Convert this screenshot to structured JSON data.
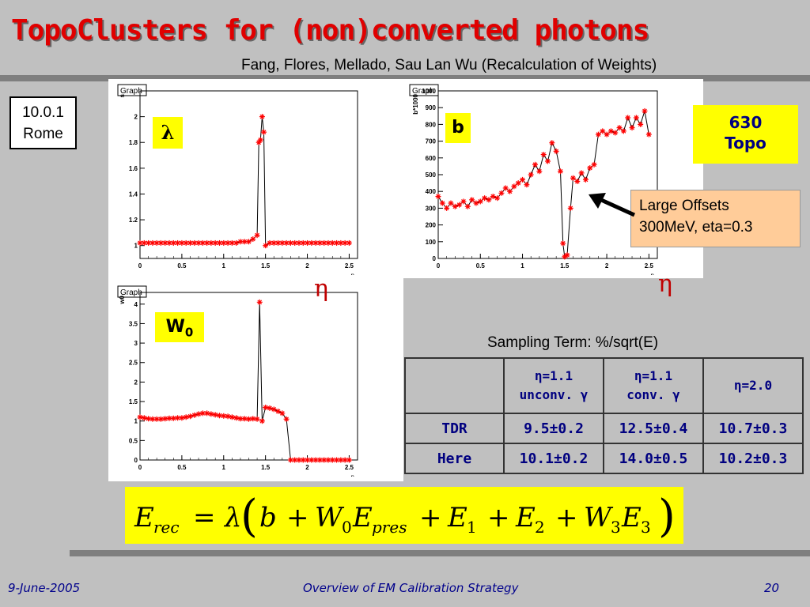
{
  "title": "TopoClusters for (non)converted photons",
  "authors": "Fang, Flores, Mellado, Sau Lan Wu (Recalculation of Weights)",
  "version": {
    "line1": "10.0.1",
    "line2": "Rome"
  },
  "badge": {
    "line1": "630",
    "line2": "Topo"
  },
  "offset_note": {
    "line1": "Large Offsets",
    "line2": "300MeV, eta=0.3"
  },
  "sampling": {
    "title": "Sampling Term: %/sqrt(E)",
    "headers": [
      {
        "l1": "η=1.1",
        "l2": "unconv. γ"
      },
      {
        "l1": "η=1.1",
        "l2": "conv. γ"
      },
      {
        "l1": "η=2.0",
        "l2": ""
      }
    ],
    "rows": [
      {
        "label": "TDR",
        "values": [
          "9.5±0.2",
          "12.5±0.4",
          "10.7±0.3"
        ]
      },
      {
        "label": "Here",
        "values": [
          "10.1±0.2",
          "14.0±0.5",
          "10.2±0.3"
        ]
      }
    ]
  },
  "formula": "E_rec = λ( b + W0 E_pres + E1 + E2 + W3 E3 )",
  "footer": {
    "date": "9-June-2005",
    "center": "Overview of EM Calibration Strategy",
    "page": "20"
  },
  "colors": {
    "title": "#e00000",
    "marker": "#ff0000",
    "footer": "#00008b",
    "param_bg": "#ffff00"
  },
  "chart_data": [
    {
      "type": "line",
      "graph_label": "Graph",
      "param_label": "λ",
      "eta_label": "η",
      "xlabel": "η",
      "ylabel": "s",
      "xlim": [
        0,
        2.6
      ],
      "ylim": [
        0.9,
        2.2
      ],
      "xticks": [
        "0",
        "0.5",
        "1",
        "1.5",
        "2",
        "2.5"
      ],
      "yticks": [
        "1",
        "1.2",
        "1.4",
        "1.6",
        "1.8",
        "2"
      ],
      "points": [
        [
          0.0,
          1.02
        ],
        [
          0.05,
          1.02
        ],
        [
          0.1,
          1.02
        ],
        [
          0.15,
          1.02
        ],
        [
          0.2,
          1.02
        ],
        [
          0.25,
          1.02
        ],
        [
          0.3,
          1.02
        ],
        [
          0.35,
          1.02
        ],
        [
          0.4,
          1.02
        ],
        [
          0.45,
          1.02
        ],
        [
          0.5,
          1.02
        ],
        [
          0.55,
          1.02
        ],
        [
          0.6,
          1.02
        ],
        [
          0.65,
          1.02
        ],
        [
          0.7,
          1.02
        ],
        [
          0.75,
          1.02
        ],
        [
          0.8,
          1.02
        ],
        [
          0.85,
          1.02
        ],
        [
          0.9,
          1.02
        ],
        [
          0.95,
          1.02
        ],
        [
          1.0,
          1.02
        ],
        [
          1.05,
          1.02
        ],
        [
          1.1,
          1.02
        ],
        [
          1.15,
          1.02
        ],
        [
          1.2,
          1.03
        ],
        [
          1.25,
          1.03
        ],
        [
          1.3,
          1.03
        ],
        [
          1.35,
          1.05
        ],
        [
          1.4,
          1.08
        ],
        [
          1.42,
          1.8
        ],
        [
          1.44,
          1.82
        ],
        [
          1.46,
          2.0
        ],
        [
          1.48,
          1.88
        ],
        [
          1.5,
          1.0
        ],
        [
          1.55,
          1.02
        ],
        [
          1.6,
          1.02
        ],
        [
          1.65,
          1.02
        ],
        [
          1.7,
          1.02
        ],
        [
          1.75,
          1.02
        ],
        [
          1.8,
          1.02
        ],
        [
          1.85,
          1.02
        ],
        [
          1.9,
          1.02
        ],
        [
          1.95,
          1.02
        ],
        [
          2.0,
          1.02
        ],
        [
          2.05,
          1.02
        ],
        [
          2.1,
          1.02
        ],
        [
          2.15,
          1.02
        ],
        [
          2.2,
          1.02
        ],
        [
          2.25,
          1.02
        ],
        [
          2.3,
          1.02
        ],
        [
          2.35,
          1.02
        ],
        [
          2.4,
          1.02
        ],
        [
          2.45,
          1.02
        ],
        [
          2.5,
          1.02
        ]
      ]
    },
    {
      "type": "line",
      "graph_label": "Graph",
      "param_label": "b",
      "eta_label": "η",
      "xlabel": "η",
      "ylabel": "b*1000",
      "xlim": [
        0,
        2.6
      ],
      "ylim": [
        0,
        1000
      ],
      "xticks": [
        "0",
        "0.5",
        "1",
        "1.5",
        "2",
        "2.5"
      ],
      "yticks": [
        "0",
        "100",
        "200",
        "300",
        "400",
        "500",
        "600",
        "700",
        "800",
        "900",
        "1000"
      ],
      "points": [
        [
          0.0,
          370
        ],
        [
          0.05,
          330
        ],
        [
          0.1,
          300
        ],
        [
          0.15,
          330
        ],
        [
          0.2,
          310
        ],
        [
          0.25,
          320
        ],
        [
          0.3,
          340
        ],
        [
          0.35,
          310
        ],
        [
          0.4,
          350
        ],
        [
          0.45,
          330
        ],
        [
          0.5,
          340
        ],
        [
          0.55,
          360
        ],
        [
          0.6,
          350
        ],
        [
          0.65,
          370
        ],
        [
          0.7,
          360
        ],
        [
          0.75,
          390
        ],
        [
          0.8,
          420
        ],
        [
          0.85,
          400
        ],
        [
          0.9,
          430
        ],
        [
          0.95,
          450
        ],
        [
          1.0,
          470
        ],
        [
          1.05,
          440
        ],
        [
          1.1,
          500
        ],
        [
          1.15,
          560
        ],
        [
          1.2,
          520
        ],
        [
          1.25,
          620
        ],
        [
          1.3,
          580
        ],
        [
          1.35,
          690
        ],
        [
          1.4,
          640
        ],
        [
          1.45,
          520
        ],
        [
          1.48,
          90
        ],
        [
          1.5,
          10
        ],
        [
          1.53,
          20
        ],
        [
          1.57,
          300
        ],
        [
          1.6,
          480
        ],
        [
          1.65,
          460
        ],
        [
          1.7,
          510
        ],
        [
          1.75,
          470
        ],
        [
          1.8,
          540
        ],
        [
          1.85,
          560
        ],
        [
          1.9,
          740
        ],
        [
          1.95,
          760
        ],
        [
          2.0,
          740
        ],
        [
          2.05,
          760
        ],
        [
          2.1,
          750
        ],
        [
          2.15,
          780
        ],
        [
          2.2,
          760
        ],
        [
          2.25,
          840
        ],
        [
          2.3,
          780
        ],
        [
          2.35,
          840
        ],
        [
          2.4,
          800
        ],
        [
          2.45,
          880
        ],
        [
          2.5,
          740
        ]
      ]
    },
    {
      "type": "line",
      "graph_label": "Graph",
      "param_label": "W0",
      "xlabel": "η",
      "ylabel": "w0",
      "xlim": [
        0,
        2.6
      ],
      "ylim": [
        0,
        4.3
      ],
      "xticks": [
        "0",
        "0.5",
        "1",
        "1.5",
        "2",
        "2.5"
      ],
      "yticks": [
        "0",
        "0.5",
        "1",
        "1.5",
        "2",
        "2.5",
        "3",
        "3.5",
        "4"
      ],
      "points": [
        [
          0.0,
          1.1
        ],
        [
          0.05,
          1.08
        ],
        [
          0.1,
          1.06
        ],
        [
          0.15,
          1.05
        ],
        [
          0.2,
          1.05
        ],
        [
          0.25,
          1.05
        ],
        [
          0.3,
          1.06
        ],
        [
          0.35,
          1.07
        ],
        [
          0.4,
          1.07
        ],
        [
          0.45,
          1.08
        ],
        [
          0.5,
          1.08
        ],
        [
          0.55,
          1.1
        ],
        [
          0.6,
          1.12
        ],
        [
          0.65,
          1.15
        ],
        [
          0.7,
          1.18
        ],
        [
          0.75,
          1.2
        ],
        [
          0.8,
          1.2
        ],
        [
          0.85,
          1.18
        ],
        [
          0.9,
          1.16
        ],
        [
          0.95,
          1.14
        ],
        [
          1.0,
          1.13
        ],
        [
          1.05,
          1.12
        ],
        [
          1.1,
          1.1
        ],
        [
          1.15,
          1.08
        ],
        [
          1.2,
          1.06
        ],
        [
          1.25,
          1.06
        ],
        [
          1.3,
          1.05
        ],
        [
          1.35,
          1.06
        ],
        [
          1.4,
          1.05
        ],
        [
          1.43,
          4.05
        ],
        [
          1.46,
          1.0
        ],
        [
          1.5,
          1.35
        ],
        [
          1.55,
          1.33
        ],
        [
          1.6,
          1.3
        ],
        [
          1.65,
          1.25
        ],
        [
          1.7,
          1.2
        ],
        [
          1.75,
          1.05
        ],
        [
          1.8,
          0.0
        ],
        [
          1.85,
          0.0
        ],
        [
          1.9,
          0.0
        ],
        [
          1.95,
          0.0
        ],
        [
          2.0,
          0.0
        ],
        [
          2.05,
          0.0
        ],
        [
          2.1,
          0.0
        ],
        [
          2.15,
          0.0
        ],
        [
          2.2,
          0.0
        ],
        [
          2.25,
          0.0
        ],
        [
          2.3,
          0.0
        ],
        [
          2.35,
          0.0
        ],
        [
          2.4,
          0.0
        ],
        [
          2.45,
          0.0
        ],
        [
          2.5,
          0.0
        ]
      ]
    }
  ]
}
